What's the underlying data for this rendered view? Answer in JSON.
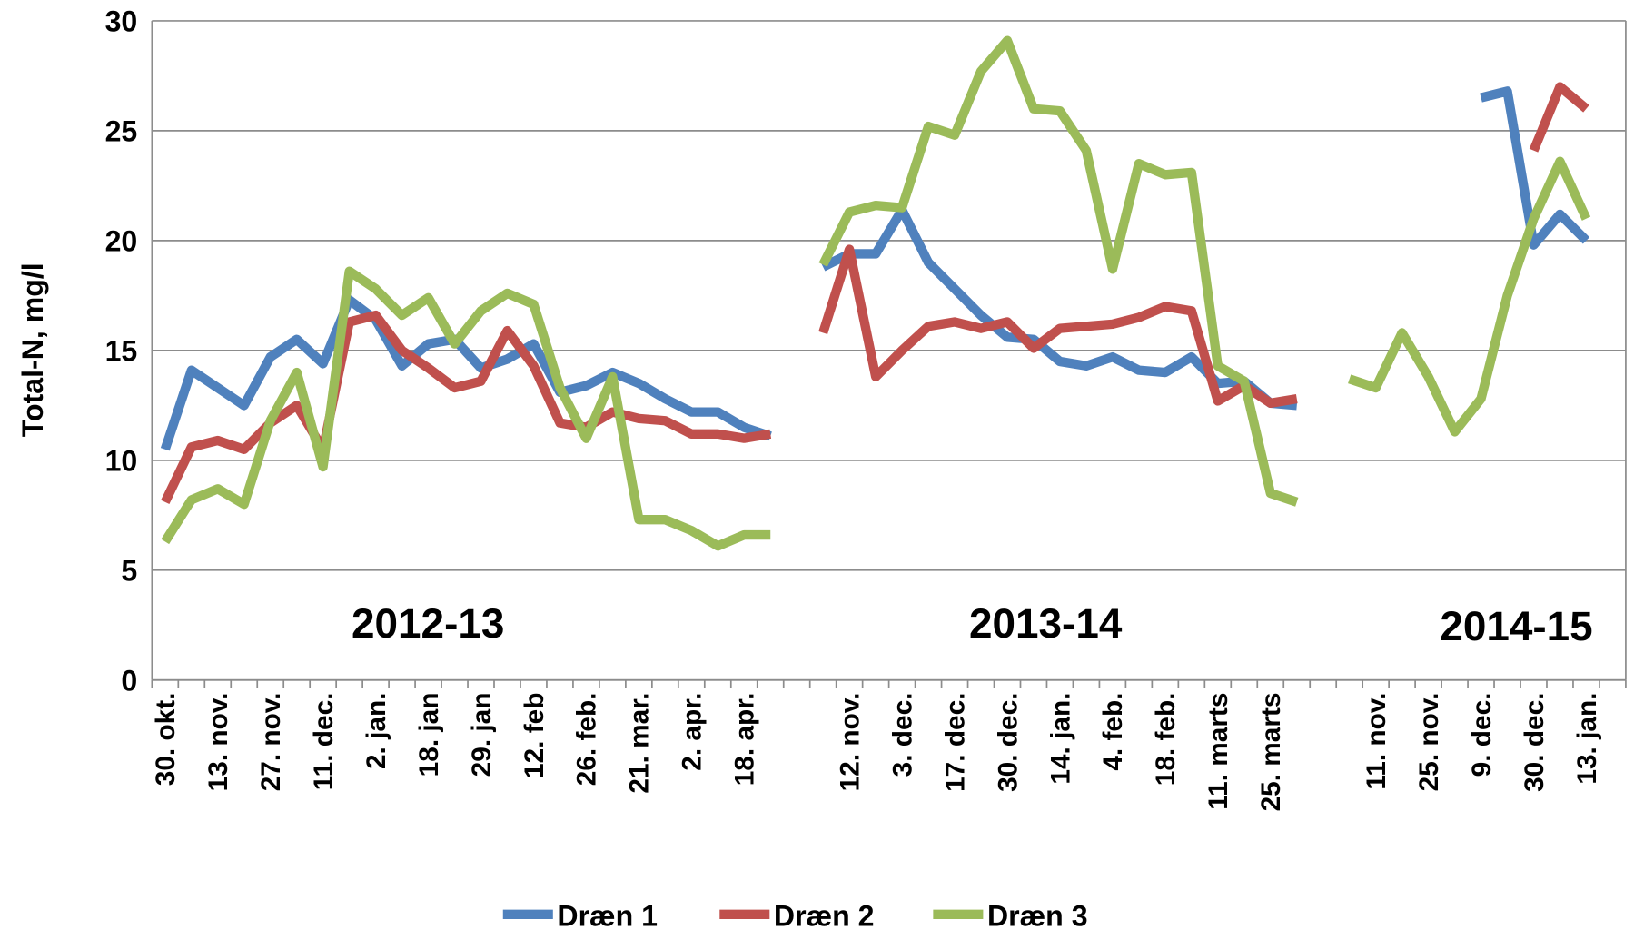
{
  "chart_data": {
    "type": "line",
    "ylabel": "Total-N, mg/l",
    "annotations": [
      "2012-13",
      "2013-14",
      "2014-15"
    ],
    "categories": [
      "30. okt.",
      null,
      "13. nov.",
      null,
      "27. nov.",
      null,
      "11. dec.",
      null,
      "2. jan.",
      null,
      "18. jan",
      null,
      "29. jan",
      null,
      "12. feb",
      null,
      "26. feb.",
      null,
      "21. mar.",
      null,
      "2. apr.",
      null,
      "18. apr.",
      null,
      null,
      null,
      "12. nov.",
      null,
      "3. dec.",
      null,
      "17. dec.",
      null,
      "30. dec.",
      null,
      "14. jan.",
      null,
      "4. feb.",
      null,
      "18. feb.",
      null,
      "11. marts",
      null,
      "25. marts",
      null,
      null,
      null,
      "11. nov.",
      null,
      "25. nov.",
      null,
      "9. dec.",
      null,
      "30. dec.",
      null,
      "13. jan.",
      null
    ],
    "series": [
      {
        "name": "Dræn 1",
        "color": "#4f81bd",
        "values": [
          10.5,
          14.1,
          13.3,
          12.5,
          14.7,
          15.5,
          14.4,
          17.3,
          16.4,
          14.3,
          15.3,
          15.5,
          14.2,
          14.6,
          15.3,
          13.1,
          13.4,
          14.0,
          13.5,
          12.8,
          12.2,
          12.2,
          11.5,
          11.1,
          null,
          18.8,
          19.4,
          19.4,
          21.4,
          19.0,
          17.8,
          16.6,
          15.6,
          15.5,
          14.5,
          14.3,
          14.7,
          14.1,
          14.0,
          14.7,
          13.5,
          13.6,
          12.6,
          12.5,
          null,
          null,
          null,
          null,
          null,
          null,
          26.5,
          26.8,
          19.8,
          21.2,
          20.0,
          null
        ]
      },
      {
        "name": "Dræn 2",
        "color": "#c0504d",
        "values": [
          8.1,
          10.6,
          10.9,
          10.5,
          11.7,
          12.5,
          10.5,
          16.3,
          16.6,
          15.0,
          14.2,
          13.3,
          13.6,
          15.9,
          14.3,
          11.7,
          11.5,
          12.2,
          11.9,
          11.8,
          11.2,
          11.2,
          11.0,
          11.2,
          null,
          15.8,
          19.6,
          13.8,
          15.0,
          16.1,
          16.3,
          16.0,
          16.3,
          15.1,
          16.0,
          16.1,
          16.2,
          16.5,
          17.0,
          16.8,
          12.7,
          13.4,
          12.6,
          12.8,
          null,
          null,
          null,
          null,
          null,
          null,
          null,
          null,
          24.1,
          27.0,
          26.0,
          null
        ]
      },
      {
        "name": "Dræn 3",
        "color": "#9bbb59",
        "values": [
          6.3,
          8.2,
          8.7,
          8.0,
          11.8,
          14.0,
          9.7,
          18.6,
          17.8,
          16.6,
          17.4,
          15.3,
          16.8,
          17.6,
          17.1,
          13.3,
          11.0,
          13.8,
          7.3,
          7.3,
          6.8,
          6.1,
          6.6,
          6.6,
          null,
          18.9,
          21.3,
          21.6,
          21.5,
          25.2,
          24.8,
          27.7,
          29.1,
          26.0,
          25.9,
          24.1,
          18.7,
          23.5,
          23.0,
          23.1,
          14.3,
          13.6,
          8.5,
          8.1,
          null,
          13.7,
          13.3,
          15.8,
          13.8,
          11.3,
          12.8,
          17.5,
          21.0,
          23.6,
          21.0,
          null
        ]
      }
    ],
    "ylim": [
      0,
      30
    ],
    "yticks": [
      0,
      5,
      10,
      15,
      20,
      25,
      30
    ],
    "grid": true,
    "legend": "bottom"
  }
}
